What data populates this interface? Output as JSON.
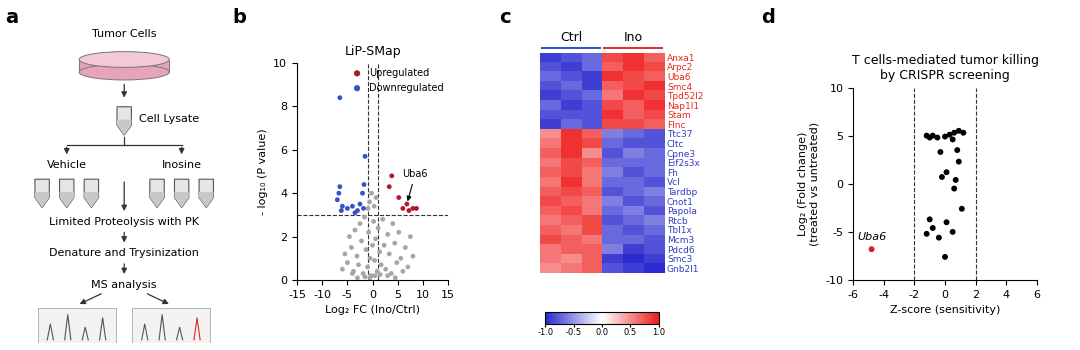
{
  "panel_labels": [
    "a",
    "b",
    "c",
    "d"
  ],
  "diagram": {
    "source": "Tumor Cells",
    "lysate": "Cell Lysate",
    "vehicle": "Vehicle",
    "treatment": "Inosine",
    "steps": [
      "Limited Proteolysis with PK",
      "Denature and Trysinization",
      "MS analysis"
    ]
  },
  "chart_data": [
    {
      "type": "scatter",
      "title": "LiP-SMap",
      "x_label": "Log₂ FC (Ino/Ctrl)",
      "y_label": "- log₁₀ (P value)",
      "xlim": [
        -15,
        15
      ],
      "xticks": [
        -15,
        -10,
        -5,
        0,
        5,
        10,
        15
      ],
      "ylim": [
        0,
        10
      ],
      "yticks": [
        0,
        2,
        4,
        6,
        8,
        10
      ],
      "thresholds": {
        "x": [
          -1,
          1
        ],
        "y": 3
      },
      "legend": "upper right",
      "series": [
        {
          "color": "#a6a6a6",
          "x": [
            -6,
            -5.5,
            -5,
            -4.6,
            -4.2,
            -3.8,
            -3.5,
            -3.1,
            -2.8,
            -2.5,
            -2.2,
            -1.9,
            -1.6,
            -1.3,
            -1.0,
            -0.8,
            -0.5,
            -0.3,
            0,
            0.2,
            0.4,
            0.6,
            0.9,
            1.1,
            1.4,
            1.7,
            2.0,
            2.3,
            2.6,
            3.0,
            3.3,
            3.7,
            4.0,
            4.4,
            4.8,
            5.2,
            5.6,
            6.0,
            6.5,
            7.0,
            7.5,
            8.0,
            -0.6,
            -0.2,
            0.3,
            0.7,
            -0.9,
            -3.0,
            3.0,
            -0.5,
            0.5,
            -1.5,
            1.5,
            -4.0,
            4.5
          ],
          "values": [
            0.5,
            1.2,
            0.8,
            2.0,
            1.5,
            0.4,
            2.3,
            1.1,
            0.7,
            2.6,
            1.8,
            0.3,
            2.9,
            1.4,
            0.6,
            2.2,
            1.0,
            0.2,
            1.6,
            2.7,
            0.9,
            1.9,
            0.4,
            2.4,
            1.3,
            0.7,
            2.8,
            1.6,
            0.5,
            2.1,
            1.2,
            0.3,
            2.6,
            1.7,
            0.8,
            2.2,
            1.0,
            0.4,
            1.5,
            0.6,
            2.0,
            1.1,
            3.6,
            4.0,
            3.4,
            3.8,
            3.3,
            0.1,
            0.2,
            0.1,
            0.2,
            0.15,
            0.25,
            0.3,
            0.1
          ]
        },
        {
          "name": "Upregulated",
          "color": "#b2182b",
          "x": [
            3.3,
            3.8,
            5.2,
            6.0,
            6.8,
            7.2,
            8.0,
            8.7
          ],
          "values": [
            4.3,
            4.8,
            3.8,
            3.3,
            3.5,
            3.2,
            3.3,
            3.3
          ]
        },
        {
          "name": "Downregulated",
          "color": "#3a50c8",
          "x": [
            -6.5,
            -1.5,
            -6.5,
            -6.7,
            -1.7,
            -2.0,
            -6.0,
            -5.0,
            -4.0,
            -3.0,
            -2.5,
            -7.0,
            -6.2,
            -1.8,
            -3.5
          ],
          "values": [
            8.4,
            5.7,
            4.3,
            4.0,
            4.4,
            4.0,
            3.4,
            3.3,
            3.4,
            3.2,
            3.5,
            3.7,
            3.2,
            3.3,
            3.1
          ]
        }
      ],
      "annotations": [
        {
          "text": "Uba6",
          "x": 6.8,
          "y": 3.5
        }
      ]
    },
    {
      "type": "heatmap",
      "column_groups": [
        {
          "name": "Ctrl",
          "color": "#3355cc",
          "count": 3
        },
        {
          "name": "Ino",
          "color": "#e03030",
          "count": 3
        }
      ],
      "series": [
        {
          "name": "Anxa1",
          "color": "#e8281e",
          "values": [
            -0.9,
            -0.8,
            -0.7,
            0.8,
            0.9,
            0.7
          ]
        },
        {
          "name": "Arpc2",
          "color": "#e8281e",
          "values": [
            -0.8,
            -0.9,
            -0.7,
            0.7,
            0.9,
            0.8
          ]
        },
        {
          "name": "Uba6",
          "color": "#e8281e",
          "values": [
            -0.7,
            -0.8,
            -0.9,
            0.9,
            0.8,
            0.7
          ]
        },
        {
          "name": "Smc4",
          "color": "#e8281e",
          "values": [
            -0.8,
            -0.7,
            -0.9,
            0.7,
            0.8,
            0.9
          ]
        },
        {
          "name": "Tpd52l2",
          "color": "#e8281e",
          "values": [
            -0.9,
            -0.8,
            -0.7,
            0.6,
            0.9,
            0.8
          ]
        },
        {
          "name": "Nap1l1",
          "color": "#e8281e",
          "values": [
            -0.7,
            -0.9,
            -0.8,
            0.8,
            0.7,
            0.9
          ]
        },
        {
          "name": "Stam",
          "color": "#e8281e",
          "values": [
            -0.8,
            -0.8,
            -0.8,
            0.9,
            0.7,
            0.8
          ]
        },
        {
          "name": "Flnc",
          "color": "#e8281e",
          "values": [
            -0.9,
            -0.7,
            -0.8,
            0.8,
            0.8,
            0.7
          ]
        },
        {
          "name": "Ttc37",
          "color": "#2f3fbf",
          "values": [
            0.5,
            0.9,
            0.7,
            -0.6,
            -0.7,
            -0.8
          ]
        },
        {
          "name": "Cltc",
          "color": "#2f3fbf",
          "values": [
            0.6,
            0.9,
            0.8,
            -0.7,
            -0.8,
            -0.8
          ]
        },
        {
          "name": "Cpne3",
          "color": "#2f3fbf",
          "values": [
            0.7,
            0.9,
            0.5,
            -0.8,
            -0.6,
            -0.7
          ]
        },
        {
          "name": "Eif2s3x",
          "color": "#2f3fbf",
          "values": [
            0.6,
            0.8,
            0.7,
            -0.7,
            -0.7,
            -0.7
          ]
        },
        {
          "name": "Fh",
          "color": "#2f3fbf",
          "values": [
            0.7,
            0.8,
            0.6,
            -0.6,
            -0.8,
            -0.7
          ]
        },
        {
          "name": "Vcl",
          "color": "#2f3fbf",
          "values": [
            0.6,
            0.9,
            0.6,
            -0.7,
            -0.7,
            -0.8
          ]
        },
        {
          "name": "Tardbp",
          "color": "#2f3fbf",
          "values": [
            0.7,
            0.8,
            0.7,
            -0.8,
            -0.7,
            -0.6
          ]
        },
        {
          "name": "Cnot1",
          "color": "#2f3fbf",
          "values": [
            0.8,
            0.7,
            0.6,
            -0.6,
            -0.8,
            -0.7
          ]
        },
        {
          "name": "Papola",
          "color": "#2f3fbf",
          "values": [
            0.7,
            0.8,
            0.6,
            -0.7,
            -0.6,
            -0.8
          ]
        },
        {
          "name": "Rtcb",
          "color": "#2f3fbf",
          "values": [
            0.6,
            0.7,
            0.8,
            -0.8,
            -0.7,
            -0.6
          ]
        },
        {
          "name": "Tbl1x",
          "color": "#2f3fbf",
          "values": [
            0.7,
            0.6,
            0.8,
            -0.7,
            -0.8,
            -0.7
          ]
        },
        {
          "name": "Mcm3",
          "color": "#2f3fbf",
          "values": [
            0.8,
            0.7,
            0.6,
            -0.7,
            -0.7,
            -0.8
          ]
        },
        {
          "name": "Pdcd6",
          "color": "#2f3fbf",
          "values": [
            0.6,
            0.7,
            0.7,
            -0.6,
            -0.9,
            -0.8
          ]
        },
        {
          "name": "Smc3",
          "color": "#2f3fbf",
          "values": [
            0.6,
            0.5,
            0.7,
            -0.9,
            -1.0,
            -0.9
          ]
        },
        {
          "name": "Gnb2l1",
          "color": "#2f3fbf",
          "values": [
            0.5,
            0.6,
            0.7,
            -0.8,
            -0.9,
            -1.0
          ]
        }
      ],
      "colorbar": {
        "colors": [
          "#2a2ad0",
          "#ffffff",
          "#ee1c1c"
        ],
        "lim": [
          -1,
          1
        ],
        "ticks": [
          {
            "value": -1,
            "label": "-1.0"
          },
          {
            "value": -0.5,
            "label": "-0.5"
          },
          {
            "value": 0,
            "label": "0.0"
          },
          {
            "value": 0.5,
            "label": "0.5"
          },
          {
            "value": 1,
            "label": "1.0"
          }
        ]
      }
    },
    {
      "type": "scatter",
      "title": "T cells-mediated tumor killing\nby CRISPR screening",
      "x_label": "Z-score (sensitivity)",
      "y_label": "Log₂ (Fold change)\n(treated vs untreated)",
      "xlim": [
        -6,
        6
      ],
      "xticks": [
        -6,
        -4,
        -2,
        0,
        2,
        4,
        6
      ],
      "ylim": [
        -10,
        10
      ],
      "yticks": [
        -10,
        -5,
        0,
        5,
        10
      ],
      "thresholds": {
        "x": [
          -2,
          2
        ]
      },
      "series": [
        {
          "color": "#000000",
          "x": [
            -1.2,
            -0.8,
            -0.5,
            0,
            0.3,
            0.6,
            0.9,
            1.2,
            -1.0,
            0.5,
            -0.3,
            0.8,
            0.9,
            -0.2,
            0.7,
            0.1,
            0.6,
            1.1,
            -1.0,
            -0.8,
            0.1,
            -1.2,
            -0.4,
            0.5,
            0.0
          ],
          "values": [
            5,
            5,
            4.8,
            4.9,
            5.1,
            5.3,
            5.5,
            5.3,
            4.8,
            4.6,
            3.3,
            3.5,
            2.3,
            0.7,
            0.4,
            1.2,
            -0.5,
            -2.6,
            -3.7,
            -4.6,
            -4.0,
            -5.2,
            -5.6,
            -5.0,
            -7.6
          ]
        },
        {
          "color": "#e31a1c",
          "x": [
            -4.8
          ],
          "values": [
            -6.8
          ]
        }
      ],
      "annotations": [
        {
          "text": "Uba6",
          "x": -4.8,
          "y": -6.8
        }
      ]
    }
  ]
}
